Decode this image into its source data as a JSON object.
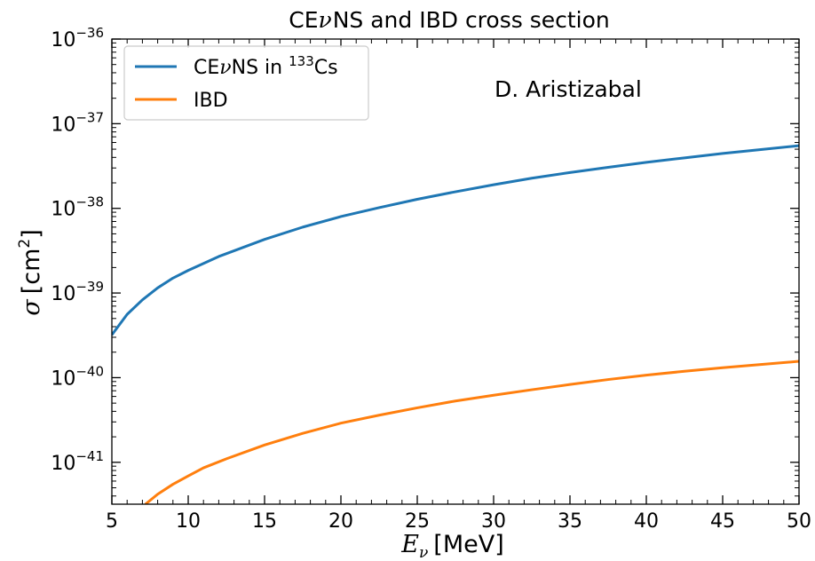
{
  "chart_data": {
    "type": "line",
    "title_parts": [
      "CE",
      "ν",
      "NS and IBD cross section"
    ],
    "xlabel_parts": {
      "symbol": "E",
      "subscript": "ν",
      "unit": "[MeV]"
    },
    "ylabel_parts": {
      "symbol": "σ",
      "unit_open": "[cm",
      "unit_sup": "2",
      "unit_close": "]"
    },
    "annotation": "D. Aristizabal",
    "x_scale": "linear",
    "y_scale": "log",
    "xlim": [
      5,
      50
    ],
    "ylim": [
      3.2e-42,
      1e-36
    ],
    "x_ticks": [
      5,
      10,
      15,
      20,
      25,
      30,
      35,
      40,
      45,
      50
    ],
    "x_tick_labels": [
      "5",
      "10",
      "15",
      "20",
      "25",
      "30",
      "35",
      "40",
      "45",
      "50"
    ],
    "y_ticks": [
      {
        "value": 1e-41,
        "base": "10",
        "exp": "−41"
      },
      {
        "value": 1e-40,
        "base": "10",
        "exp": "−40"
      },
      {
        "value": 1e-39,
        "base": "10",
        "exp": "−39"
      },
      {
        "value": 1e-38,
        "base": "10",
        "exp": "−38"
      },
      {
        "value": 1e-37,
        "base": "10",
        "exp": "−37"
      },
      {
        "value": 1e-36,
        "base": "10",
        "exp": "−36"
      }
    ],
    "grid": false,
    "legend_position": "top-left",
    "series": [
      {
        "name": "CEνNS in ¹³³Cs",
        "legend_parts": {
          "pre": "CE",
          "nu": "ν",
          "mid": "NS in ",
          "sup": "133",
          "post": "Cs"
        },
        "color": "#1f77b4",
        "x": [
          5,
          6,
          7,
          8,
          9,
          10,
          12,
          15,
          17.5,
          20,
          22.5,
          25,
          27.5,
          30,
          32.5,
          35,
          37.5,
          40,
          42.5,
          45,
          47.5,
          50
        ],
        "y": [
          3.2e-40,
          5.6e-40,
          8.3e-40,
          1.15e-39,
          1.5e-39,
          1.85e-39,
          2.7e-39,
          4.3e-39,
          6e-39,
          8e-39,
          1.02e-38,
          1.28e-38,
          1.57e-38,
          1.9e-38,
          2.27e-38,
          2.65e-38,
          3.05e-38,
          3.5e-38,
          3.95e-38,
          4.45e-38,
          4.95e-38,
          5.5e-38
        ]
      },
      {
        "name": "IBD",
        "legend_parts": {
          "pre": "IBD",
          "nu": "",
          "mid": "",
          "sup": "",
          "post": ""
        },
        "color": "#ff7f0e",
        "x": [
          7.2,
          8,
          9,
          10,
          11,
          12.5,
          15,
          17.5,
          20,
          22.5,
          25,
          27.5,
          30,
          32.5,
          35,
          37.5,
          40,
          42.5,
          45,
          47.5,
          50
        ],
        "y": [
          3.2e-42,
          4.2e-42,
          5.5e-42,
          6.9e-42,
          8.6e-42,
          1.1e-41,
          1.6e-41,
          2.2e-41,
          2.9e-41,
          3.6e-41,
          4.4e-41,
          5.3e-41,
          6.2e-41,
          7.2e-41,
          8.3e-41,
          9.5e-41,
          1.07e-40,
          1.19e-40,
          1.31e-40,
          1.43e-40,
          1.56e-40
        ]
      }
    ]
  }
}
